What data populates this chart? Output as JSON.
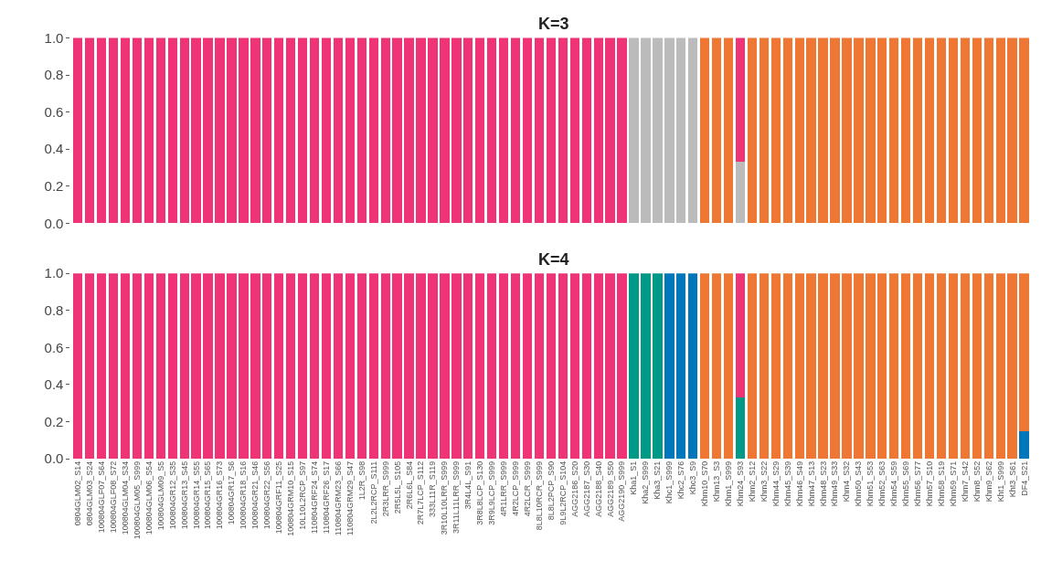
{
  "chart_data": [
    {
      "type": "bar",
      "title": "K=3",
      "stacked": true,
      "tick_labels": "y",
      "categories": [
        null,
        null,
        null,
        null,
        null,
        null,
        null,
        null,
        null,
        null,
        null,
        null,
        null,
        null,
        null,
        null,
        null,
        null,
        null,
        null,
        null,
        null,
        null,
        null,
        null,
        null,
        null,
        null,
        null,
        null,
        null,
        null,
        null,
        null,
        null,
        null,
        null,
        null,
        null,
        null,
        null,
        null,
        null,
        null,
        null,
        null,
        null,
        null,
        null,
        null,
        null,
        null,
        null,
        null,
        null,
        null,
        null,
        null,
        null,
        null,
        null,
        null,
        null,
        null,
        null,
        null,
        null,
        null,
        null,
        null,
        null,
        null,
        null,
        null,
        null,
        null,
        null,
        null,
        null,
        null,
        null
      ],
      "ylim": [
        0,
        1
      ],
      "yticks": [
        {
          "value": 0,
          "label": "0.0"
        },
        {
          "value": 0.2,
          "label": "0.2"
        },
        {
          "value": 0.4,
          "label": "0.4"
        },
        {
          "value": 0.6,
          "label": "0.6"
        },
        {
          "value": 0.8,
          "label": "0.8"
        },
        {
          "value": 1,
          "label": "1.0"
        }
      ],
      "series": [
        {
          "color": "#bbbbbb",
          "values": [
            null,
            null,
            null,
            null,
            null,
            null,
            null,
            null,
            null,
            null,
            null,
            null,
            null,
            null,
            null,
            null,
            null,
            null,
            null,
            null,
            null,
            null,
            null,
            null,
            null,
            null,
            null,
            null,
            null,
            null,
            null,
            null,
            null,
            null,
            null,
            null,
            null,
            null,
            null,
            null,
            null,
            null,
            null,
            null,
            null,
            null,
            null,
            1,
            1,
            1,
            1,
            1,
            1,
            null,
            null,
            null,
            0.33,
            null,
            null,
            null,
            null,
            null,
            null,
            null,
            null,
            null,
            null,
            null,
            null,
            null,
            null,
            null,
            null,
            null,
            null,
            null,
            null,
            null,
            null,
            null,
            null
          ]
        },
        {
          "color": "#ee3377",
          "values": [
            1,
            1,
            1,
            1,
            1,
            1,
            1,
            1,
            1,
            1,
            1,
            1,
            1,
            1,
            1,
            1,
            1,
            1,
            1,
            1,
            1,
            1,
            1,
            1,
            1,
            1,
            1,
            1,
            1,
            1,
            1,
            1,
            1,
            1,
            1,
            1,
            1,
            1,
            1,
            1,
            1,
            1,
            1,
            1,
            1,
            1,
            1,
            null,
            null,
            null,
            null,
            null,
            null,
            null,
            null,
            null,
            0.67,
            null,
            null,
            null,
            null,
            null,
            null,
            null,
            null,
            null,
            null,
            null,
            null,
            null,
            null,
            null,
            null,
            null,
            null,
            null,
            null,
            null,
            null,
            null,
            null
          ]
        },
        {
          "color": "#ee7733",
          "values": [
            null,
            null,
            null,
            null,
            null,
            null,
            null,
            null,
            null,
            null,
            null,
            null,
            null,
            null,
            null,
            null,
            null,
            null,
            null,
            null,
            null,
            null,
            null,
            null,
            null,
            null,
            null,
            null,
            null,
            null,
            null,
            null,
            null,
            null,
            null,
            null,
            null,
            null,
            null,
            null,
            null,
            null,
            null,
            null,
            null,
            null,
            null,
            null,
            null,
            null,
            null,
            null,
            null,
            1,
            1,
            1,
            null,
            1,
            1,
            1,
            1,
            1,
            1,
            1,
            1,
            1,
            1,
            1,
            1,
            1,
            1,
            1,
            1,
            1,
            1,
            1,
            1,
            1,
            1,
            1,
            1
          ]
        }
      ]
    },
    {
      "type": "bar",
      "title": "K=4",
      "stacked": true,
      "categories": [
        "0804GLM02_S14",
        "0804GLM03_S24",
        "100804GLF07_S64",
        "100804GLF08_S72",
        "100804GLM04_S34",
        "100804GLM05_S999",
        "100804GLM06_S54",
        "100804GLM09_S5",
        "100804GR12_S35",
        "100804GR13_S45",
        "100804GR14_S55",
        "100804GR15_S65",
        "100804GR16_S73",
        "100804GR17_S6",
        "100804GR18_S16",
        "100804GR21_S46",
        "100804GR22_S56",
        "100804GRF11_S25",
        "100804GRM10_S15",
        "10L10L2RCP_S97",
        "110804GRF24_S74",
        "110804GRF26_S17",
        "110804GRM23_S66",
        "110804GRM29_S47",
        "1L2R_S98",
        "2L2L2RCP_S111",
        "2R3LRR_S999",
        "2R5L5L_S105",
        "2R6L6L_S84",
        "2R7L7LCP_S112",
        "333L11R_S119",
        "3R10L10LRR_S999",
        "3R11L11LRR_S999",
        "3R4L4L_S91",
        "3R8L8LCP_S130",
        "3R9L9LCP_S999",
        "4R1LRR_S999",
        "4R2LCP_S999",
        "4R2LCR_S999",
        "8L8L10RCR_S999",
        "8L8L2PCP_S90",
        "9L9L2RCP_S104",
        "AGG2186_S20",
        "AGG2187_S30",
        "AGG2188_S40",
        "AGG2189_S50",
        "AGG2190_S999",
        "Kha1_S1",
        "Kha2_S999",
        "Kha3_S21",
        "Khc1_S999",
        "Khc2_S76",
        "Khc3_S9",
        "Khm10_S70",
        "Khm13_S3",
        "Khm1_S999",
        "Khm24_S93",
        "Khm2_S12",
        "Khm3_S22",
        "Khm44_S29",
        "Khm45_S39",
        "Khm46_S49",
        "Khm47_S13",
        "Khm48_S23",
        "Khm49_S33",
        "Khm4_S32",
        "Khm50_S43",
        "Khm51_S53",
        "Khm52_S63",
        "Khm54_S59",
        "Khm55_S69",
        "Khm56_S77",
        "Khm57_S10",
        "Khm58_S19",
        "Khm59_S71",
        "Khm7_S42",
        "Khm8_S52",
        "Khm9_S62",
        "Kht1_S999",
        "Kht3_S61",
        "DF4_S21"
      ],
      "ylim": [
        0,
        1
      ],
      "yticks": [
        {
          "value": 0,
          "label": "0.0"
        },
        {
          "value": 0.2,
          "label": "0.2"
        },
        {
          "value": 0.4,
          "label": "0.4"
        },
        {
          "value": 0.6,
          "label": "0.6"
        },
        {
          "value": 0.8,
          "label": "0.8"
        },
        {
          "value": 1,
          "label": "1.0"
        }
      ],
      "series": [
        {
          "color": "#009988",
          "values": [
            null,
            null,
            null,
            null,
            null,
            null,
            null,
            null,
            null,
            null,
            null,
            null,
            null,
            null,
            null,
            null,
            null,
            null,
            null,
            null,
            null,
            null,
            null,
            null,
            null,
            null,
            null,
            null,
            null,
            null,
            null,
            null,
            null,
            null,
            null,
            null,
            null,
            null,
            null,
            null,
            null,
            null,
            null,
            null,
            null,
            null,
            null,
            1,
            1,
            1,
            null,
            null,
            null,
            null,
            null,
            null,
            0.33,
            null,
            null,
            null,
            null,
            null,
            null,
            null,
            null,
            null,
            null,
            null,
            null,
            null,
            null,
            null,
            null,
            null,
            null,
            null,
            null,
            null,
            null,
            null,
            null
          ]
        },
        {
          "color": "#0077bb",
          "values": [
            null,
            null,
            null,
            null,
            null,
            null,
            null,
            null,
            null,
            null,
            null,
            null,
            null,
            null,
            null,
            null,
            null,
            null,
            null,
            null,
            null,
            null,
            null,
            null,
            null,
            null,
            null,
            null,
            null,
            null,
            null,
            null,
            null,
            null,
            null,
            null,
            null,
            null,
            null,
            null,
            null,
            null,
            null,
            null,
            null,
            null,
            null,
            null,
            null,
            null,
            1,
            1,
            1,
            null,
            null,
            null,
            null,
            null,
            null,
            null,
            null,
            null,
            null,
            null,
            null,
            null,
            null,
            null,
            null,
            null,
            null,
            null,
            null,
            null,
            null,
            null,
            null,
            null,
            null,
            null,
            0.15
          ]
        },
        {
          "color": "#ee3377",
          "values": [
            1,
            1,
            1,
            1,
            1,
            1,
            1,
            1,
            1,
            1,
            1,
            1,
            1,
            1,
            1,
            1,
            1,
            1,
            1,
            1,
            1,
            1,
            1,
            1,
            1,
            1,
            1,
            1,
            1,
            1,
            1,
            1,
            1,
            1,
            1,
            1,
            1,
            1,
            1,
            1,
            1,
            1,
            1,
            1,
            1,
            1,
            1,
            null,
            null,
            null,
            null,
            null,
            null,
            null,
            null,
            null,
            0.67,
            null,
            null,
            null,
            null,
            null,
            null,
            null,
            null,
            null,
            null,
            null,
            null,
            null,
            null,
            null,
            null,
            null,
            null,
            null,
            null,
            null,
            null,
            null,
            null
          ]
        },
        {
          "color": "#ee7733",
          "values": [
            null,
            null,
            null,
            null,
            null,
            null,
            null,
            null,
            null,
            null,
            null,
            null,
            null,
            null,
            null,
            null,
            null,
            null,
            null,
            null,
            null,
            null,
            null,
            null,
            null,
            null,
            null,
            null,
            null,
            null,
            null,
            null,
            null,
            null,
            null,
            null,
            null,
            null,
            null,
            null,
            null,
            null,
            null,
            null,
            null,
            null,
            null,
            null,
            null,
            null,
            null,
            null,
            null,
            1,
            1,
            1,
            null,
            1,
            1,
            1,
            1,
            1,
            1,
            1,
            1,
            1,
            1,
            1,
            1,
            1,
            1,
            1,
            1,
            1,
            1,
            1,
            1,
            1,
            1,
            1,
            0.85
          ]
        }
      ]
    }
  ]
}
